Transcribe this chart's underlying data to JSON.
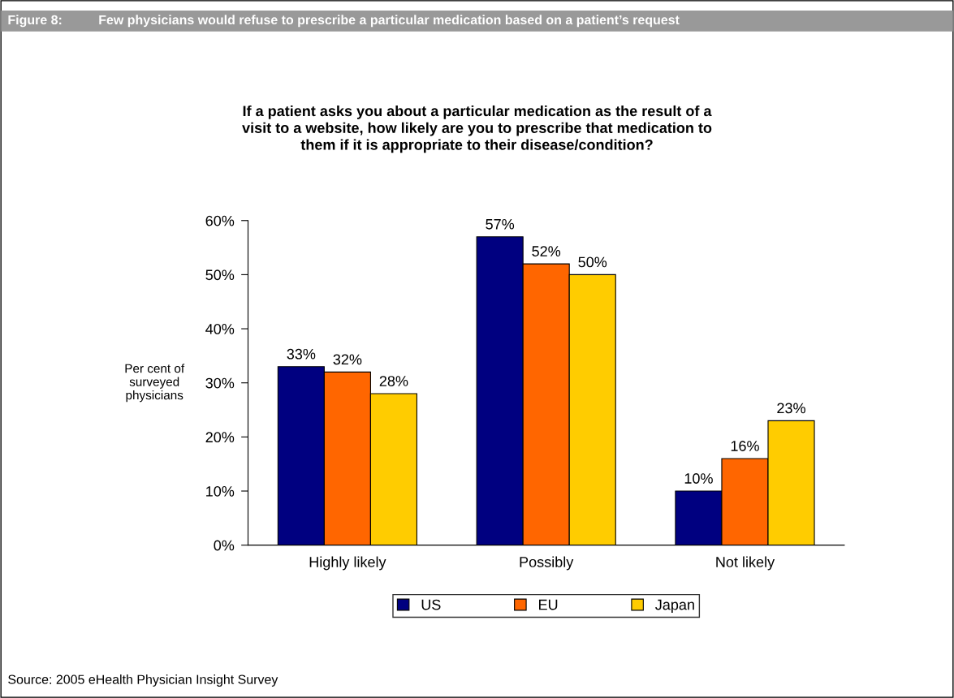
{
  "chart_data": {
    "type": "bar",
    "title": "Figure 8:          Few physicians would refuse to prescribe a particular medication based on a patient’s request",
    "subtitle": "If a patient asks you about a particular medication as the result of a\nvisit to a website, how likely are you to prescribe that medication to\nthem if it is appropriate to their disease/condition?",
    "ylabel": "Per cent of\nsurveyed\nphysicians",
    "categories": [
      "Highly likely",
      "Possibly",
      "Not likely"
    ],
    "series": [
      {
        "name": "US",
        "color": "#000080",
        "values": [
          33,
          57,
          10
        ],
        "value_labels": [
          "33%",
          "57%",
          "10%"
        ]
      },
      {
        "name": "EU",
        "color": "#ff6600",
        "values": [
          32,
          52,
          16
        ],
        "value_labels": [
          "32%",
          "52%",
          "16%"
        ]
      },
      {
        "name": "Japan",
        "color": "#ffcc00",
        "values": [
          28,
          50,
          23
        ],
        "value_labels": [
          "28%",
          "50%",
          "23%"
        ]
      }
    ],
    "ylim": [
      0,
      60
    ],
    "yticks": [
      {
        "value": 0,
        "label": "0%"
      },
      {
        "value": 10,
        "label": "10%"
      },
      {
        "value": 20,
        "label": "20%"
      },
      {
        "value": 30,
        "label": "30%"
      },
      {
        "value": 40,
        "label": "40%"
      },
      {
        "value": 50,
        "label": "50%"
      },
      {
        "value": 60,
        "label": "60%"
      }
    ],
    "grid": false,
    "legend": "bottom",
    "annotations": [
      "Source: 2005 eHealth Physician Insight Survey"
    ]
  }
}
